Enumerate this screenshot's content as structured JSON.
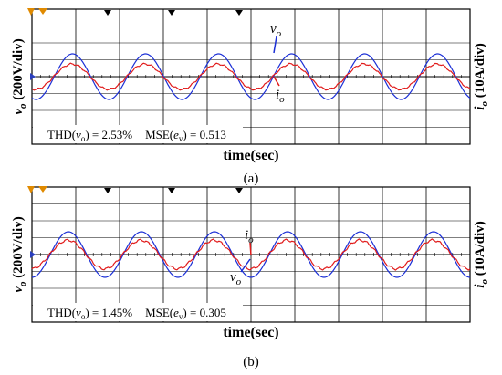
{
  "colors": {
    "vo": "#1b2fd6",
    "io": "#e11b1b",
    "grid": "#000000",
    "marker": "#2a3fbf",
    "trigger": "#e08a00"
  },
  "chart_data": [
    {
      "type": "line",
      "panel_label": "(a)",
      "xlabel": "time(sec)",
      "ylabel_left": "v_o (200V/div)",
      "ylabel_right": "i_o (10A/div)",
      "ylabel_left_parts": {
        "sym": "v",
        "sub": "o",
        "unit": " (200V/div)"
      },
      "ylabel_right_parts": {
        "sym": "i",
        "sub": "o",
        "unit": " (10A/div)"
      },
      "grid": true,
      "divisions": {
        "x": 10,
        "y": 8
      },
      "xlim": [
        0,
        10
      ],
      "ylim": [
        -4,
        4
      ],
      "annotation_parts": {
        "t1": "THD(",
        "s1": "v",
        "s2": "o",
        "t2": ") = 2.53%",
        "t3": "MSE(",
        "s3": "e",
        "s4": "v",
        "t4": ") = 0.513"
      },
      "series": [
        {
          "name": "v_o",
          "label_sym": "v",
          "label_sub": "o",
          "amplitude_div": 1.35,
          "periods_per_screen": 6,
          "start_phase_div": 0.0,
          "ripple": 0.0
        },
        {
          "name": "i_o",
          "label_sym": "i",
          "label_sub": "o",
          "amplitude_div": 0.75,
          "periods_per_screen": 6,
          "start_phase_div": 0.0,
          "ripple": 0.06
        }
      ]
    },
    {
      "type": "line",
      "panel_label": "(b)",
      "xlabel": "time(sec)",
      "ylabel_left": "v_o (200V/div)",
      "ylabel_right": "i_o (10A/div)",
      "ylabel_left_parts": {
        "sym": "v",
        "sub": "o",
        "unit": " (200V/div)"
      },
      "ylabel_right_parts": {
        "sym": "i",
        "sub": "o",
        "unit": " (10A/div)"
      },
      "grid": true,
      "divisions": {
        "x": 10,
        "y": 8
      },
      "xlim": [
        0,
        10
      ],
      "ylim": [
        -4,
        4
      ],
      "annotation_parts": {
        "t1": "THD(",
        "s1": "v",
        "s2": "o",
        "t2": ") = 1.45%",
        "t3": "MSE(",
        "s3": "e",
        "s4": "v",
        "t4": ") = 0.305"
      },
      "series": [
        {
          "name": "v_o",
          "label_sym": "v",
          "label_sub": "o",
          "amplitude_div": 1.35,
          "periods_per_screen": 6,
          "start_phase_div": 0.0,
          "ripple": 0.0
        },
        {
          "name": "i_o",
          "label_sym": "i",
          "label_sub": "o",
          "amplitude_div": 0.85,
          "periods_per_screen": 6,
          "start_phase_div": 0.0,
          "ripple": 0.07
        }
      ]
    }
  ]
}
